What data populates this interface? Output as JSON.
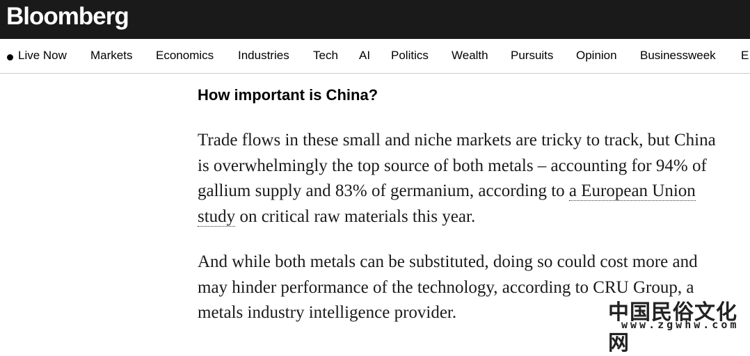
{
  "header": {
    "logo": "Bloomberg"
  },
  "nav": {
    "items": [
      "Live Now",
      "Markets",
      "Economics",
      "Industries",
      "Tech",
      "AI",
      "Politics",
      "Wealth",
      "Pursuits",
      "Opinion",
      "Businessweek",
      "E"
    ]
  },
  "article": {
    "heading": "How important is China?",
    "paragraphs": [
      {
        "before": "Trade flows in these small and niche markets are tricky to track, but China is overwhelmingly the top source of both metals – accounting for 94% of gallium supply and 83% of germanium, according to ",
        "link": "a European Union study",
        "after": " on critical raw materials this year."
      },
      {
        "text": "And while both metals can be substituted, doing so could cost more and may hinder performance of the technology, according to CRU Group, a metals industry intelligence provider."
      }
    ]
  },
  "watermark": {
    "title": "中国民俗文化网",
    "url": "www.zgwhw.com"
  }
}
